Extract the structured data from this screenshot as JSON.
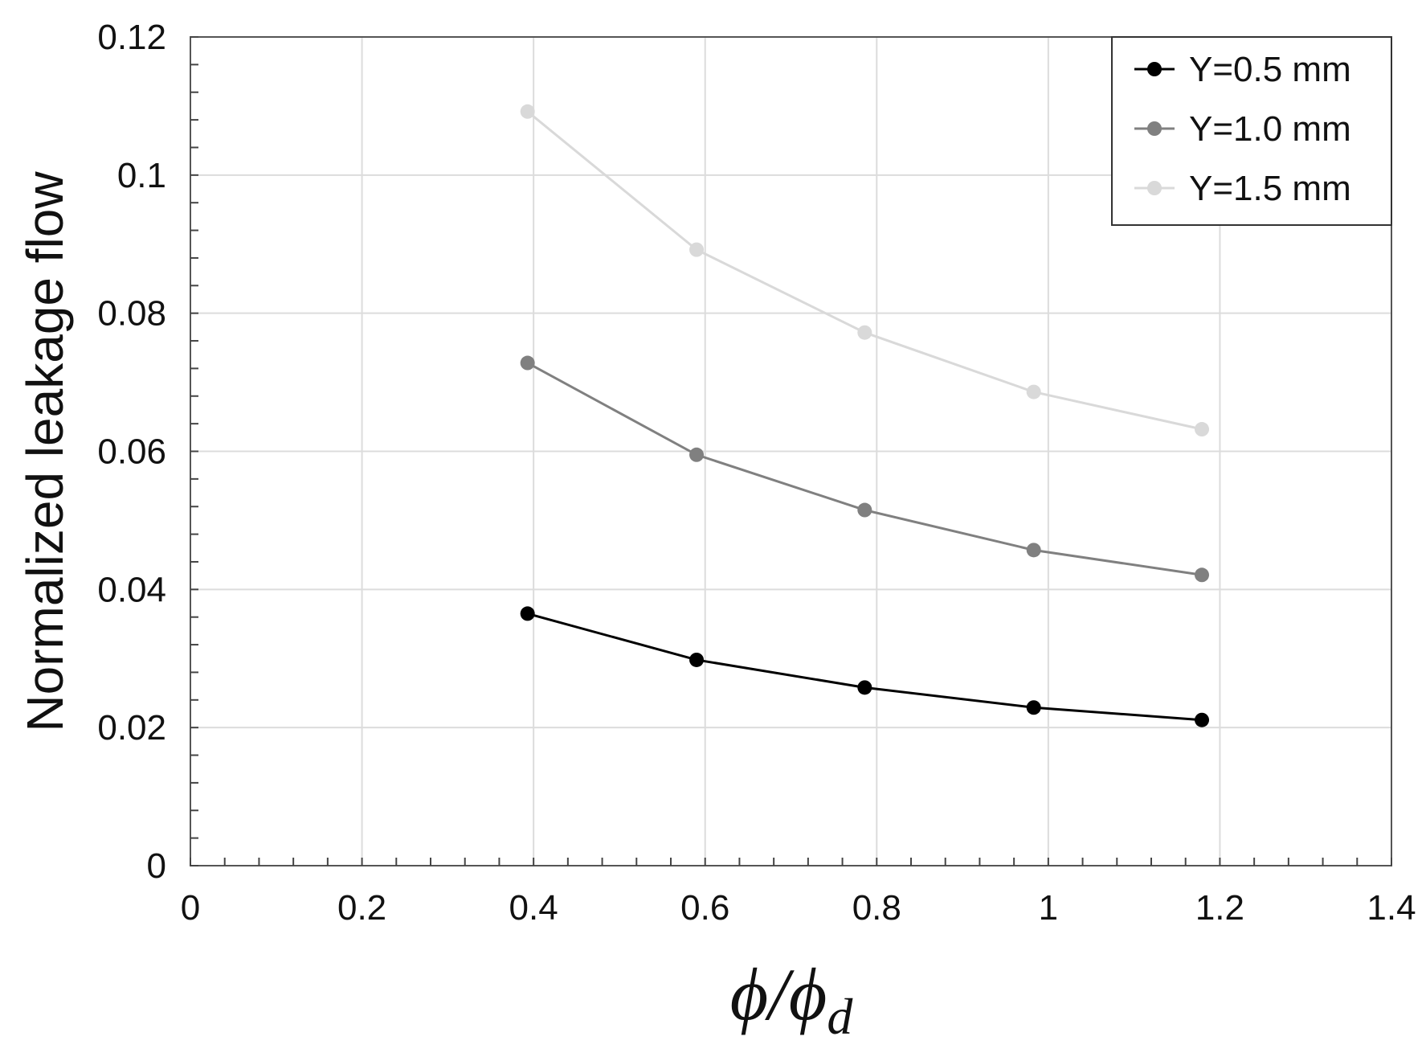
{
  "chart_data": {
    "type": "line",
    "title": "",
    "xlabel": "ϕ/ϕ",
    "xlabel_subscript": "d",
    "ylabel": "Normalized leakage flow",
    "xlim": [
      0,
      1.4
    ],
    "ylim": [
      0,
      0.12
    ],
    "x_ticks": [
      0,
      0.2,
      0.4,
      0.6,
      0.8,
      1.0,
      1.2,
      1.4
    ],
    "x_tick_labels": [
      "0",
      "0.2",
      "0.4",
      "0.6",
      "0.8",
      "1",
      "1.2",
      "1.4"
    ],
    "y_ticks": [
      0,
      0.02,
      0.04,
      0.06,
      0.08,
      0.1,
      0.12
    ],
    "y_tick_labels": [
      "0",
      "0.02",
      "0.04",
      "0.06",
      "0.08",
      "0.1",
      "0.12"
    ],
    "grid": true,
    "legend_position": "top-right",
    "x": [
      0.393,
      0.59,
      0.786,
      0.983,
      1.179
    ],
    "series": [
      {
        "name": "Y=0.5 mm",
        "color": "#000000",
        "values": [
          0.0365,
          0.0298,
          0.0258,
          0.0229,
          0.0211
        ]
      },
      {
        "name": "Y=1.0 mm",
        "color": "#808080",
        "values": [
          0.0728,
          0.0595,
          0.0515,
          0.0457,
          0.0421
        ]
      },
      {
        "name": "Y=1.5 mm",
        "color": "#d9d9d9",
        "values": [
          0.1092,
          0.0892,
          0.0772,
          0.0686,
          0.0632
        ]
      }
    ]
  }
}
